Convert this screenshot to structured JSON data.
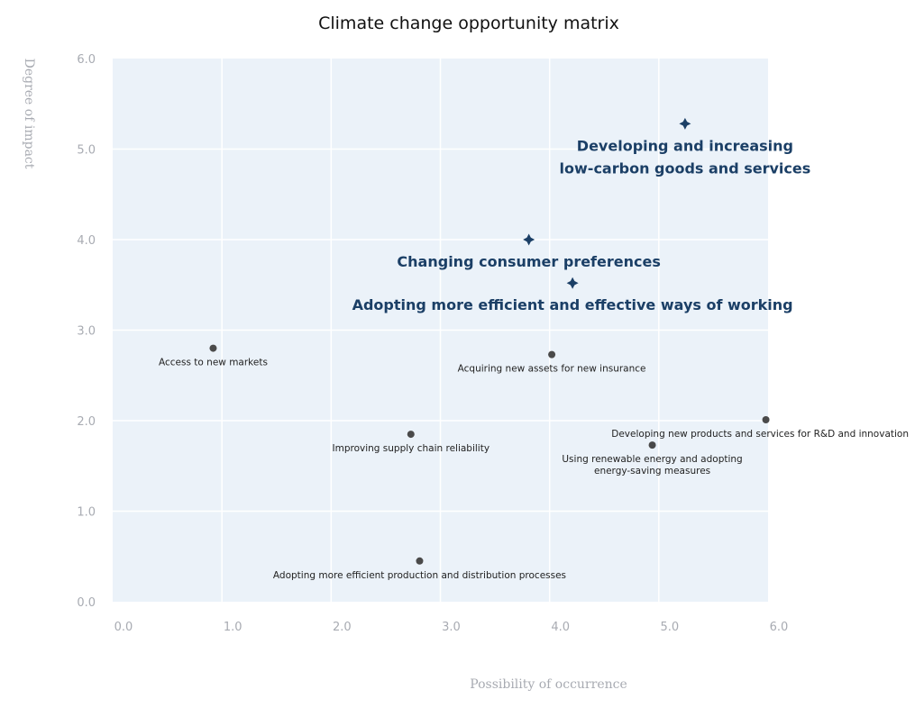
{
  "chart_data": {
    "type": "scatter",
    "title": "Climate change opportunity matrix",
    "xlabel": "Possibility of occurrence",
    "ylabel": "Degree of impact",
    "xlim": [
      0,
      6
    ],
    "ylim": [
      0,
      6
    ],
    "xticks": [
      "0.0",
      "1.0",
      "2.0",
      "3.0",
      "4.0",
      "5.0",
      "6.0"
    ],
    "yticks": [
      "0.0",
      "1.0",
      "2.0",
      "3.0",
      "4.0",
      "5.0",
      "6.0"
    ],
    "grid": true,
    "colors": {
      "plot_bg": "#ebf2f9",
      "grid": "#ffffff",
      "dot": "#4a4a4a",
      "highlight": "#1b3f66"
    },
    "points": [
      {
        "x": 0.92,
        "y": 2.8,
        "label": [
          "Access to new markets"
        ],
        "highlight": false
      },
      {
        "x": 4.02,
        "y": 2.73,
        "label": [
          "Acquiring new assets for new insurance"
        ],
        "highlight": false
      },
      {
        "x": 2.73,
        "y": 1.85,
        "label": [
          "Improving supply chain reliability"
        ],
        "highlight": false
      },
      {
        "x": 5.98,
        "y": 2.01,
        "label": [
          "Developing new products and services for R&D and innovation"
        ],
        "highlight": false
      },
      {
        "x": 4.94,
        "y": 1.73,
        "label": [
          "Using renewable energy and adopting",
          "energy-saving measures"
        ],
        "highlight": false
      },
      {
        "x": 2.81,
        "y": 0.45,
        "label": [
          "Adopting more efficient production and distribution processes"
        ],
        "highlight": false
      },
      {
        "x": 5.24,
        "y": 5.28,
        "label": [
          "Developing and increasing",
          "low-carbon goods and services"
        ],
        "highlight": true
      },
      {
        "x": 3.81,
        "y": 4.0,
        "label": [
          "Changing consumer preferences"
        ],
        "highlight": true
      },
      {
        "x": 4.21,
        "y": 3.52,
        "label": [
          "Adopting more efficient and effective ways of working"
        ],
        "highlight": true
      }
    ]
  }
}
